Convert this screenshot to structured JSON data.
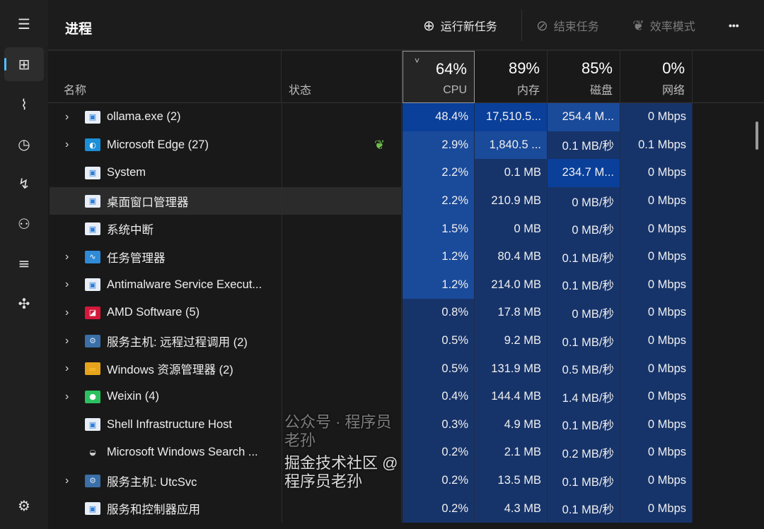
{
  "sidebar": {
    "items": [
      {
        "name": "menu",
        "icon": "hamburger-icon",
        "glyph": "☰"
      },
      {
        "name": "processes",
        "icon": "processes-icon",
        "glyph": "⊞",
        "active": true
      },
      {
        "name": "performance",
        "icon": "performance-icon",
        "glyph": "⌇"
      },
      {
        "name": "app-history",
        "icon": "history-icon",
        "glyph": "◷"
      },
      {
        "name": "startup",
        "icon": "startup-icon",
        "glyph": "↯"
      },
      {
        "name": "users",
        "icon": "users-icon",
        "glyph": "⚇"
      },
      {
        "name": "details",
        "icon": "list-icon",
        "glyph": "≡"
      },
      {
        "name": "services",
        "icon": "puzzle-icon",
        "glyph": "✣"
      },
      {
        "name": "settings",
        "icon": "gear-icon",
        "glyph": "⚙"
      }
    ]
  },
  "toolbar": {
    "title": "进程",
    "run_new_task": "运行新任务",
    "end_task": "结束任务",
    "efficiency_mode": "效率模式",
    "more": "•••"
  },
  "columns": {
    "name": "名称",
    "status": "状态",
    "cpu": {
      "label": "CPU",
      "pct": "64%"
    },
    "memory": {
      "label": "内存",
      "pct": "89%"
    },
    "disk": {
      "label": "磁盘",
      "pct": "85%"
    },
    "network": {
      "label": "网络",
      "pct": "0%"
    },
    "sort_indicator": "˅"
  },
  "heat_colors": [
    "#14264a",
    "#17346a",
    "#1a4a9a",
    "#0a3f9a"
  ],
  "rows": [
    {
      "name": "ollama.exe (2)",
      "expandable": true,
      "icon": "app-window-icon",
      "cpu": "48.4%",
      "mem": "17,510.5...",
      "disk": "254.4 M...",
      "net": "0 Mbps",
      "heat": [
        3,
        3,
        2,
        1
      ]
    },
    {
      "name": "Microsoft Edge (27)",
      "expandable": true,
      "icon": "edge-icon",
      "status_icon": "efficiency-leaf-icon",
      "cpu": "2.9%",
      "mem": "1,840.5 ...",
      "disk": "0.1 MB/秒",
      "net": "0.1 Mbps",
      "heat": [
        2,
        2,
        1,
        1
      ]
    },
    {
      "name": "System",
      "expandable": false,
      "icon": "app-window-icon",
      "cpu": "2.2%",
      "mem": "0.1 MB",
      "disk": "234.7 M...",
      "net": "0 Mbps",
      "heat": [
        2,
        1,
        3,
        1
      ]
    },
    {
      "name": "桌面窗口管理器",
      "expandable": false,
      "icon": "app-window-icon",
      "cpu": "2.2%",
      "mem": "210.9 MB",
      "disk": "0 MB/秒",
      "net": "0 Mbps",
      "heat": [
        2,
        1,
        1,
        1
      ],
      "hover": true
    },
    {
      "name": "系统中断",
      "expandable": false,
      "icon": "app-window-icon",
      "cpu": "1.5%",
      "mem": "0 MB",
      "disk": "0 MB/秒",
      "net": "0 Mbps",
      "heat": [
        2,
        1,
        1,
        1
      ]
    },
    {
      "name": "任务管理器",
      "expandable": true,
      "icon": "task-manager-icon",
      "cpu": "1.2%",
      "mem": "80.4 MB",
      "disk": "0.1 MB/秒",
      "net": "0 Mbps",
      "heat": [
        2,
        1,
        1,
        1
      ]
    },
    {
      "name": "Antimalware Service Execut...",
      "expandable": true,
      "icon": "app-window-icon",
      "cpu": "1.2%",
      "mem": "214.0 MB",
      "disk": "0.1 MB/秒",
      "net": "0 Mbps",
      "heat": [
        2,
        1,
        1,
        1
      ]
    },
    {
      "name": "AMD Software (5)",
      "expandable": true,
      "icon": "amd-icon",
      "cpu": "0.8%",
      "mem": "17.8 MB",
      "disk": "0 MB/秒",
      "net": "0 Mbps",
      "heat": [
        1,
        1,
        1,
        1
      ]
    },
    {
      "name": "服务主机: 远程过程调用 (2)",
      "expandable": true,
      "icon": "service-gear-icon",
      "cpu": "0.5%",
      "mem": "9.2 MB",
      "disk": "0.1 MB/秒",
      "net": "0 Mbps",
      "heat": [
        1,
        1,
        1,
        1
      ]
    },
    {
      "name": "Windows 资源管理器 (2)",
      "expandable": true,
      "icon": "folder-icon",
      "cpu": "0.5%",
      "mem": "131.9 MB",
      "disk": "0.5 MB/秒",
      "net": "0 Mbps",
      "heat": [
        1,
        1,
        1,
        1
      ]
    },
    {
      "name": "Weixin (4)",
      "expandable": true,
      "icon": "wechat-icon",
      "cpu": "0.4%",
      "mem": "144.4 MB",
      "disk": "1.4 MB/秒",
      "net": "0 Mbps",
      "heat": [
        1,
        1,
        1,
        1
      ]
    },
    {
      "name": "Shell Infrastructure Host",
      "expandable": false,
      "icon": "app-window-icon",
      "cpu": "0.3%",
      "mem": "4.9 MB",
      "disk": "0.1 MB/秒",
      "net": "0 Mbps",
      "heat": [
        1,
        1,
        1,
        1
      ]
    },
    {
      "name": "Microsoft Windows Search ...",
      "expandable": false,
      "icon": "search-indexer-icon",
      "cpu": "0.2%",
      "mem": "2.1 MB",
      "disk": "0.2 MB/秒",
      "net": "0 Mbps",
      "heat": [
        1,
        1,
        1,
        1
      ]
    },
    {
      "name": "服务主机: UtcSvc",
      "expandable": true,
      "icon": "service-gear-icon",
      "cpu": "0.2%",
      "mem": "13.5 MB",
      "disk": "0.1 MB/秒",
      "net": "0 Mbps",
      "heat": [
        1,
        1,
        1,
        1
      ]
    },
    {
      "name": "服务和控制器应用",
      "expandable": false,
      "icon": "app-window-icon",
      "cpu": "0.2%",
      "mem": "4.3 MB",
      "disk": "0.1 MB/秒",
      "net": "0 Mbps",
      "heat": [
        1,
        1,
        1,
        1
      ]
    }
  ],
  "watermark": {
    "line1": "公众号 · 程序员老孙",
    "line2": "掘金技术社区 @ 程序员老孙"
  }
}
